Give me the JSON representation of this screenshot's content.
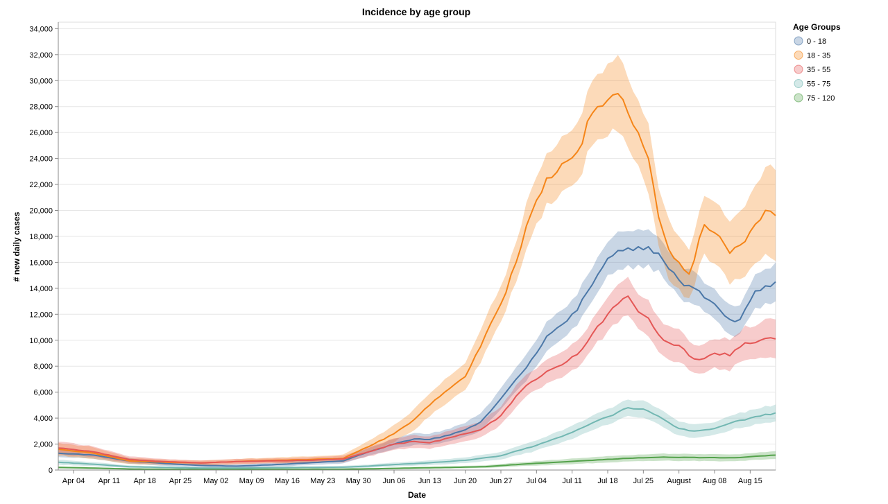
{
  "chart_data": {
    "type": "area",
    "title": "Incidence by age group",
    "xlabel": "Date",
    "ylabel": "# new daily cases",
    "ylim": [
      0,
      34500
    ],
    "x_range": [
      "2021-04-01",
      "2021-08-20"
    ],
    "y_ticks": [
      0,
      2000,
      4000,
      6000,
      8000,
      10000,
      12000,
      14000,
      16000,
      18000,
      20000,
      22000,
      24000,
      26000,
      28000,
      30000,
      32000,
      34000
    ],
    "y_tick_labels": [
      "0",
      "2,000",
      "4,000",
      "6,000",
      "8,000",
      "10,000",
      "12,000",
      "14,000",
      "16,000",
      "18,000",
      "20,000",
      "22,000",
      "24,000",
      "26,000",
      "28,000",
      "30,000",
      "32,000",
      "34,000"
    ],
    "x_ticks": [
      "2021-04-04",
      "2021-04-11",
      "2021-04-18",
      "2021-04-25",
      "2021-05-02",
      "2021-05-09",
      "2021-05-16",
      "2021-05-23",
      "2021-05-30",
      "2021-06-06",
      "2021-06-13",
      "2021-06-20",
      "2021-06-27",
      "2021-07-04",
      "2021-07-11",
      "2021-07-18",
      "2021-07-25",
      "2021-08-01",
      "2021-08-08",
      "2021-08-15"
    ],
    "x_tick_labels": [
      "Apr 04",
      "Apr 11",
      "Apr 18",
      "Apr 25",
      "May 02",
      "May 09",
      "May 16",
      "May 23",
      "May 30",
      "Jun 06",
      "Jun 13",
      "Jun 20",
      "Jun 27",
      "Jul 04",
      "Jul 11",
      "Jul 18",
      "Jul 25",
      "August",
      "Aug 08",
      "Aug 15"
    ],
    "grid": true,
    "legend": {
      "title": "Age Groups",
      "position": "top-right"
    },
    "series": [
      {
        "name": "0 - 18",
        "color": "#4c78a8",
        "points": [
          [
            "2021-04-01",
            1300
          ],
          [
            "2021-04-08",
            1150
          ],
          [
            "2021-04-15",
            700
          ],
          [
            "2021-04-22",
            500
          ],
          [
            "2021-04-29",
            350
          ],
          [
            "2021-05-06",
            300
          ],
          [
            "2021-05-13",
            400
          ],
          [
            "2021-05-20",
            550
          ],
          [
            "2021-05-27",
            700
          ],
          [
            "2021-06-01",
            1400
          ],
          [
            "2021-06-06",
            2000
          ],
          [
            "2021-06-10",
            2400
          ],
          [
            "2021-06-13",
            2350
          ],
          [
            "2021-06-17",
            2700
          ],
          [
            "2021-06-20",
            3100
          ],
          [
            "2021-06-23",
            3700
          ],
          [
            "2021-06-27",
            5500
          ],
          [
            "2021-06-30",
            7000
          ],
          [
            "2021-07-03",
            8500
          ],
          [
            "2021-07-06",
            10300
          ],
          [
            "2021-07-09",
            11200
          ],
          [
            "2021-07-12",
            12300
          ],
          [
            "2021-07-15",
            14300
          ],
          [
            "2021-07-18",
            16300
          ],
          [
            "2021-07-21",
            16900
          ],
          [
            "2021-07-24",
            17200
          ],
          [
            "2021-07-26",
            17200
          ],
          [
            "2021-07-28",
            16700
          ],
          [
            "2021-07-30",
            15500
          ],
          [
            "2021-08-02",
            14200
          ],
          [
            "2021-08-05",
            13800
          ],
          [
            "2021-08-08",
            12800
          ],
          [
            "2021-08-11",
            11600
          ],
          [
            "2021-08-13",
            11600
          ],
          [
            "2021-08-16",
            13800
          ],
          [
            "2021-08-20",
            14500
          ]
        ],
        "band_halfwidth": [
          300,
          280,
          220,
          180,
          150,
          140,
          160,
          180,
          200,
          300,
          400,
          450,
          450,
          500,
          550,
          650,
          800,
          900,
          1000,
          1100,
          1150,
          1200,
          1300,
          1350,
          1400,
          1400,
          1400,
          1350,
          1300,
          1250,
          1200,
          1150,
          1100,
          1100,
          1300,
          1500
        ]
      },
      {
        "name": "18 - 35",
        "color": "#f58518",
        "points": [
          [
            "2021-04-01",
            1600
          ],
          [
            "2021-04-08",
            1300
          ],
          [
            "2021-04-15",
            700
          ],
          [
            "2021-04-22",
            600
          ],
          [
            "2021-04-29",
            550
          ],
          [
            "2021-05-06",
            650
          ],
          [
            "2021-05-13",
            750
          ],
          [
            "2021-05-20",
            800
          ],
          [
            "2021-05-27",
            900
          ],
          [
            "2021-06-01",
            1800
          ],
          [
            "2021-06-06",
            2800
          ],
          [
            "2021-06-10",
            3900
          ],
          [
            "2021-06-13",
            5000
          ],
          [
            "2021-06-17",
            6300
          ],
          [
            "2021-06-20",
            7200
          ],
          [
            "2021-06-23",
            9500
          ],
          [
            "2021-06-27",
            12800
          ],
          [
            "2021-06-30",
            16000
          ],
          [
            "2021-07-03",
            19800
          ],
          [
            "2021-07-06",
            22500
          ],
          [
            "2021-07-09",
            23600
          ],
          [
            "2021-07-12",
            24500
          ],
          [
            "2021-07-15",
            27500
          ],
          [
            "2021-07-18",
            28500
          ],
          [
            "2021-07-20",
            29000
          ],
          [
            "2021-07-22",
            27500
          ],
          [
            "2021-07-24",
            26000
          ],
          [
            "2021-07-26",
            24000
          ],
          [
            "2021-07-28",
            19500
          ],
          [
            "2021-07-30",
            17000
          ],
          [
            "2021-08-01",
            16000
          ],
          [
            "2021-08-03",
            15100
          ],
          [
            "2021-08-06",
            18900
          ],
          [
            "2021-08-09",
            18000
          ],
          [
            "2021-08-11",
            16700
          ],
          [
            "2021-08-14",
            17600
          ],
          [
            "2021-08-18",
            20000
          ],
          [
            "2021-08-20",
            19600
          ]
        ],
        "band_halfwidth": [
          500,
          450,
          250,
          200,
          180,
          200,
          220,
          240,
          280,
          450,
          650,
          800,
          900,
          1000,
          1050,
          1200,
          1400,
          1600,
          1800,
          2000,
          2100,
          2200,
          2500,
          2700,
          2800,
          2800,
          2700,
          2600,
          2400,
          2200,
          2100,
          2000,
          2300,
          2400,
          2400,
          2600,
          3200,
          3500
        ]
      },
      {
        "name": "35 - 55",
        "color": "#e45756",
        "points": [
          [
            "2021-04-01",
            1700
          ],
          [
            "2021-04-08",
            1400
          ],
          [
            "2021-04-15",
            800
          ],
          [
            "2021-04-22",
            650
          ],
          [
            "2021-04-29",
            550
          ],
          [
            "2021-05-06",
            650
          ],
          [
            "2021-05-13",
            700
          ],
          [
            "2021-05-20",
            750
          ],
          [
            "2021-05-27",
            850
          ],
          [
            "2021-06-01",
            1400
          ],
          [
            "2021-06-06",
            2000
          ],
          [
            "2021-06-10",
            2200
          ],
          [
            "2021-06-13",
            2100
          ],
          [
            "2021-06-17",
            2500
          ],
          [
            "2021-06-20",
            2800
          ],
          [
            "2021-06-23",
            3100
          ],
          [
            "2021-06-27",
            4200
          ],
          [
            "2021-06-30",
            5700
          ],
          [
            "2021-07-03",
            6800
          ],
          [
            "2021-07-06",
            7600
          ],
          [
            "2021-07-09",
            8100
          ],
          [
            "2021-07-12",
            8900
          ],
          [
            "2021-07-15",
            10500
          ],
          [
            "2021-07-18",
            12000
          ],
          [
            "2021-07-20",
            12800
          ],
          [
            "2021-07-22",
            13400
          ],
          [
            "2021-07-24",
            12200
          ],
          [
            "2021-07-26",
            11700
          ],
          [
            "2021-07-29",
            10000
          ],
          [
            "2021-08-01",
            9600
          ],
          [
            "2021-08-03",
            8800
          ],
          [
            "2021-08-05",
            8500
          ],
          [
            "2021-08-08",
            9000
          ],
          [
            "2021-08-11",
            8800
          ],
          [
            "2021-08-14",
            9800
          ],
          [
            "2021-08-17",
            10000
          ],
          [
            "2021-08-20",
            10100
          ]
        ],
        "band_halfwidth": [
          500,
          420,
          250,
          200,
          180,
          200,
          200,
          220,
          250,
          350,
          450,
          480,
          480,
          520,
          560,
          600,
          700,
          800,
          850,
          900,
          950,
          1000,
          1150,
          1300,
          1400,
          1450,
          1400,
          1350,
          1250,
          1200,
          1150,
          1100,
          1150,
          1150,
          1250,
          1400,
          1500
        ]
      },
      {
        "name": "55 - 75",
        "color": "#72b7b2",
        "points": [
          [
            "2021-04-01",
            600
          ],
          [
            "2021-04-08",
            450
          ],
          [
            "2021-04-15",
            250
          ],
          [
            "2021-04-22",
            200
          ],
          [
            "2021-04-29",
            150
          ],
          [
            "2021-05-06",
            150
          ],
          [
            "2021-05-13",
            180
          ],
          [
            "2021-05-20",
            200
          ],
          [
            "2021-05-27",
            220
          ],
          [
            "2021-06-01",
            300
          ],
          [
            "2021-06-06",
            420
          ],
          [
            "2021-06-13",
            560
          ],
          [
            "2021-06-20",
            750
          ],
          [
            "2021-06-27",
            1100
          ],
          [
            "2021-07-04",
            1900
          ],
          [
            "2021-07-11",
            2900
          ],
          [
            "2021-07-18",
            4100
          ],
          [
            "2021-07-22",
            4800
          ],
          [
            "2021-07-25",
            4700
          ],
          [
            "2021-07-29",
            3900
          ],
          [
            "2021-08-01",
            3200
          ],
          [
            "2021-08-04",
            3000
          ],
          [
            "2021-08-08",
            3200
          ],
          [
            "2021-08-11",
            3600
          ],
          [
            "2021-08-15",
            4000
          ],
          [
            "2021-08-20",
            4400
          ]
        ],
        "band_halfwidth": [
          200,
          160,
          100,
          80,
          70,
          70,
          80,
          90,
          100,
          120,
          150,
          180,
          220,
          300,
          400,
          500,
          600,
          650,
          650,
          600,
          550,
          500,
          500,
          550,
          600,
          650
        ]
      },
      {
        "name": "75 - 120",
        "color": "#54a24b",
        "points": [
          [
            "2021-04-01",
            200
          ],
          [
            "2021-04-08",
            150
          ],
          [
            "2021-04-15",
            80
          ],
          [
            "2021-04-22",
            60
          ],
          [
            "2021-04-29",
            50
          ],
          [
            "2021-05-06",
            50
          ],
          [
            "2021-05-13",
            60
          ],
          [
            "2021-05-20",
            60
          ],
          [
            "2021-05-27",
            70
          ],
          [
            "2021-06-03",
            100
          ],
          [
            "2021-06-10",
            160
          ],
          [
            "2021-06-17",
            200
          ],
          [
            "2021-06-24",
            260
          ],
          [
            "2021-07-01",
            450
          ],
          [
            "2021-07-08",
            600
          ],
          [
            "2021-07-15",
            750
          ],
          [
            "2021-07-22",
            900
          ],
          [
            "2021-07-29",
            1000
          ],
          [
            "2021-08-05",
            950
          ],
          [
            "2021-08-12",
            950
          ],
          [
            "2021-08-20",
            1150
          ]
        ],
        "band_halfwidth": [
          80,
          60,
          40,
          30,
          25,
          25,
          30,
          30,
          35,
          50,
          70,
          90,
          100,
          150,
          200,
          230,
          250,
          270,
          260,
          260,
          300
        ]
      }
    ]
  }
}
